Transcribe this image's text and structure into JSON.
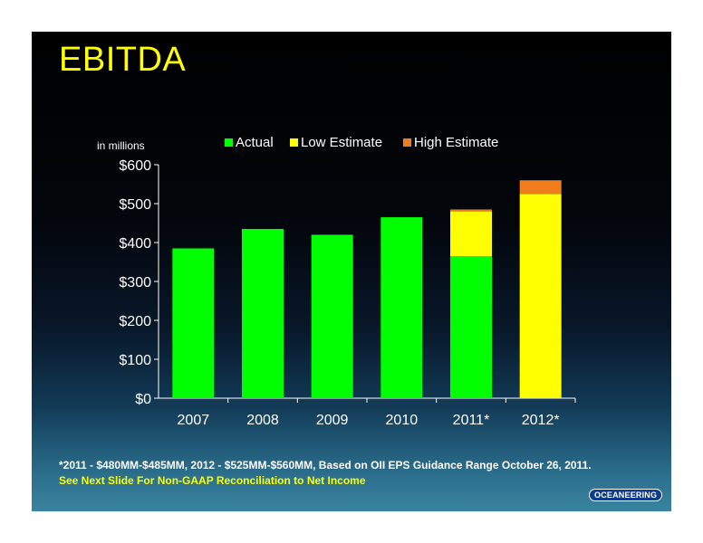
{
  "slide": {
    "title": "EBITDA",
    "unit_note": "in millions",
    "footnote": "*2011 - $480MM-$485MM, 2012 - $525MM-$560MM, Based on OII EPS Guidance Range October 26, 2011.",
    "reconciliation_note": "See Next Slide For Non-GAAP Reconciliation to Net Income",
    "logo_text": "OCEANEERING"
  },
  "legend": {
    "actual": "Actual",
    "low": "Low Estimate",
    "high": "High Estimate"
  },
  "colors": {
    "actual": "#00ff00",
    "low": "#ffff00",
    "high": "#f07c1c",
    "title": "#ffff00"
  },
  "chart_data": {
    "type": "bar",
    "stacked": true,
    "categories": [
      "2007",
      "2008",
      "2009",
      "2010",
      "2011*",
      "2012*"
    ],
    "series": [
      {
        "name": "Actual",
        "values": [
          385,
          435,
          420,
          465,
          365,
          0
        ]
      },
      {
        "name": "Low Estimate",
        "values": [
          0,
          0,
          0,
          0,
          115,
          525
        ]
      },
      {
        "name": "High Estimate",
        "values": [
          0,
          0,
          0,
          0,
          5,
          35
        ]
      }
    ],
    "ylim": [
      0,
      600
    ],
    "yticks": [
      0,
      100,
      200,
      300,
      400,
      500,
      600
    ],
    "ytick_labels": [
      "$0",
      "$100",
      "$200",
      "$300",
      "$400",
      "$500",
      "$600"
    ],
    "legend_position": "top",
    "grid": false
  }
}
